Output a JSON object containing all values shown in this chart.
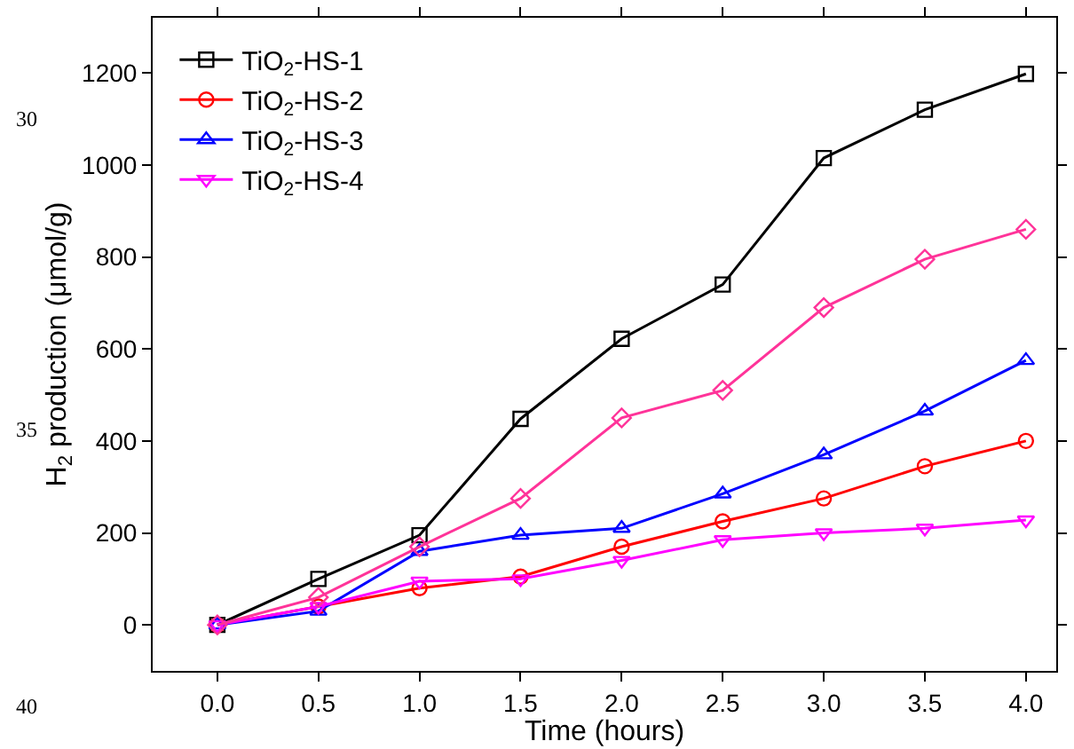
{
  "chart_data": {
    "type": "line",
    "xlabel": "Time (hours)",
    "ylabel": "H$_{2}$ production (μmol/g)",
    "x": [
      0,
      0.5,
      1,
      1.5,
      2,
      2.5,
      3,
      3.5,
      4
    ],
    "series": [
      {
        "name": "TiO$_{2}$-HS-1",
        "color": "#000000",
        "marker": "square",
        "values": [
          0,
          100,
          195,
          448,
          622,
          740,
          1015,
          1120,
          1198
        ]
      },
      {
        "name": "TiO$_{2}$-HS-2",
        "color": "#ff0000",
        "marker": "circle",
        "values": [
          0,
          40,
          80,
          105,
          170,
          225,
          275,
          345,
          400
        ]
      },
      {
        "name": "TiO$_{2}$-HS-3",
        "color": "#0000ff",
        "marker": "triangle",
        "values": [
          0,
          30,
          160,
          195,
          210,
          285,
          370,
          465,
          575
        ]
      },
      {
        "name": "TiO$_{2}$-HS-4",
        "color": "#ff00ff",
        "marker": "triangle-down",
        "values": [
          0,
          40,
          95,
          100,
          140,
          185,
          200,
          210,
          228
        ]
      },
      {
        "color": "#ff3399",
        "marker": "diamond",
        "values": [
          0,
          60,
          170,
          275,
          450,
          510,
          690,
          795,
          860
        ]
      }
    ],
    "xlim": [
      -0.32,
      4.15
    ],
    "ylim": [
      -100,
      1320
    ],
    "xticks": [
      {
        "value": 0,
        "label": "0.0"
      },
      {
        "value": 0.5,
        "label": "0.5"
      },
      {
        "value": 1,
        "label": "1.0"
      },
      {
        "value": 1.5,
        "label": "1.5"
      },
      {
        "value": 2,
        "label": "2.0"
      },
      {
        "value": 2.5,
        "label": "2.5"
      },
      {
        "value": 3,
        "label": "3.0"
      },
      {
        "value": 3.5,
        "label": "3.5"
      },
      {
        "value": 4,
        "label": "4.0"
      }
    ],
    "yticks": [
      0,
      200,
      400,
      600,
      800,
      1000,
      1200
    ],
    "legend": "top left",
    "annotations": [
      "30",
      "35",
      "40"
    ]
  }
}
